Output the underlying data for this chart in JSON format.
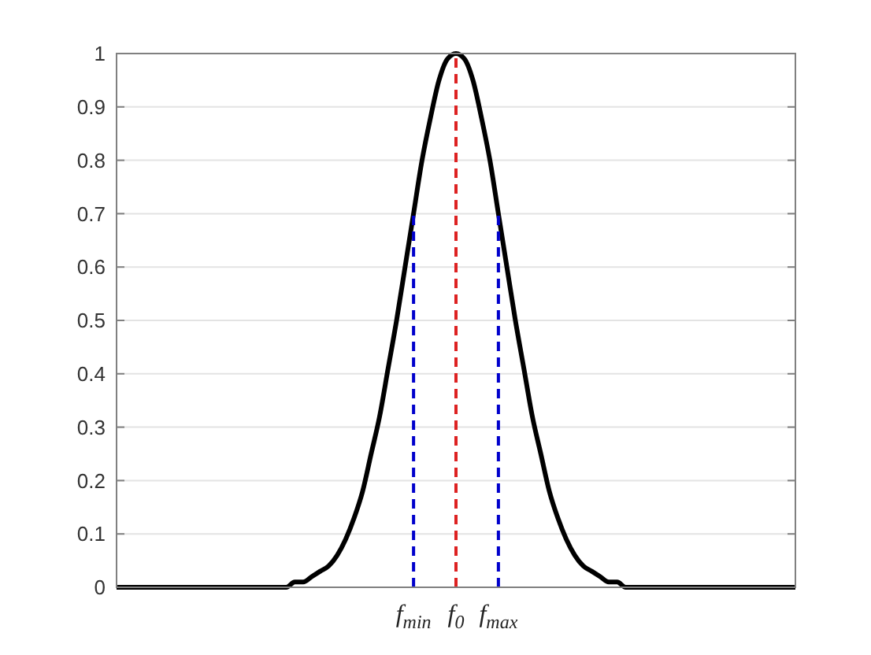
{
  "chart_data": {
    "type": "line",
    "ylim": [
      0,
      1
    ],
    "categories": [
      null,
      null,
      null,
      null,
      null,
      null,
      null,
      null,
      null,
      null,
      null,
      null,
      null,
      null,
      null,
      null,
      null,
      null,
      null,
      null,
      null,
      null,
      null,
      null,
      null,
      null,
      null,
      null,
      null,
      null,
      null,
      null,
      null,
      null,
      null,
      "f$_{min}$",
      null,
      null,
      null,
      null,
      "f$_{0}$",
      null,
      null,
      null,
      null,
      "f$_{max}$",
      null,
      null,
      null,
      null,
      null,
      null,
      null,
      null,
      null,
      null,
      null,
      null,
      null,
      null,
      null,
      null,
      null,
      null,
      null,
      null,
      null,
      null,
      null,
      null,
      null,
      null,
      null,
      null,
      null,
      null,
      null,
      null,
      null,
      null,
      null
    ],
    "yticks": [
      0,
      0.1,
      0.2,
      0.3,
      0.4,
      0.5,
      0.6,
      0.7,
      0.8,
      0.9,
      1
    ],
    "grid": "y",
    "marker": "none",
    "line_style": "solid",
    "series": [
      {
        "color": "#000000",
        "values": [
          0,
          0,
          0,
          0,
          0,
          0,
          0,
          0,
          0,
          0,
          0,
          0,
          0,
          0,
          0,
          0,
          0,
          0,
          0,
          0,
          0,
          0.01,
          0.01,
          0.02,
          0.03,
          0.04,
          0.06,
          0.09,
          0.13,
          0.18,
          0.25,
          0.32,
          0.41,
          0.5,
          0.6,
          0.7,
          0.8,
          0.88,
          0.95,
          0.99,
          1,
          0.99,
          0.95,
          0.88,
          0.8,
          0.7,
          0.6,
          0.5,
          0.41,
          0.32,
          0.25,
          0.18,
          0.13,
          0.09,
          0.06,
          0.04,
          0.03,
          0.02,
          0.01,
          0.01,
          0,
          0,
          0,
          0,
          0,
          0,
          0,
          0,
          0,
          0,
          0,
          0,
          0,
          0,
          0,
          0,
          0,
          0,
          0,
          0,
          0
        ]
      }
    ],
    "ref_lines": [
      {
        "axis": "x",
        "value": "f$_{min}$",
        "color": "#0000cc",
        "line_style": "dashed"
      },
      {
        "axis": "x",
        "value": "f$_{0}$",
        "color": "#dd2222",
        "line_style": "dashed"
      },
      {
        "axis": "x",
        "value": "f$_{max}$",
        "color": "#0000cc",
        "line_style": "dashed"
      }
    ]
  }
}
